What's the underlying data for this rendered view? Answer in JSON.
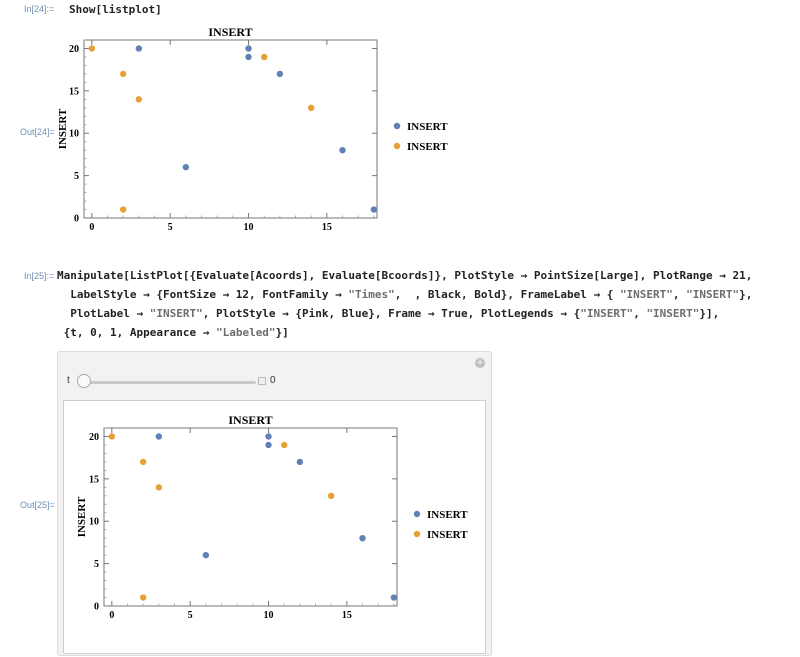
{
  "cells": {
    "in24_label": "In[24]:=",
    "in24_code": "Show[listplot]",
    "out24_label": "Out[24]=",
    "in25_label": "In[25]:=",
    "in25": {
      "l1_a": "Manipulate[ListPlot[{Evaluate[Acoords], Evaluate[Bcoords]}, PlotStyle → PointSize[Large], PlotRange → 21,",
      "l2_a": "  LabelStyle → {FontSize → 12, FontFamily → ",
      "l2_s1": "\"Times\"",
      "l2_b": ",  , Black, Bold}, FrameLabel → { ",
      "l2_s2": "\"INSERT\"",
      "l2_c": ", ",
      "l2_s3": "\"INSERT\"",
      "l2_d": "},",
      "l3_a": "  PlotLabel → ",
      "l3_s1": "\"INSERT\"",
      "l3_b": ", PlotStyle → {Pink, Blue}, Frame → True, PlotLegends → {",
      "l3_s2": "\"INSERT\"",
      "l3_c": ", ",
      "l3_s3": "\"INSERT\"",
      "l3_d": "}],",
      "l4_a": "{t, 0, 1, Appearance → ",
      "l4_s1": "\"Labeled\"",
      "l4_b": "}]"
    },
    "out25_label": "Out[25]="
  },
  "manipulate": {
    "slider_label": "t",
    "slider_value": "0",
    "slider_fraction": 0,
    "plus_glyph": "+"
  },
  "colors": {
    "blue_series": "#5f81b5",
    "orange_series": "#e6a034"
  },
  "chart_data": [
    {
      "type": "scatter",
      "title": "INSERT",
      "xlabel": "",
      "ylabel": "INSERT",
      "xlim": [
        -0.5,
        18.2
      ],
      "ylim": [
        0,
        21
      ],
      "xticks": [
        0,
        5,
        10,
        15
      ],
      "yticks": [
        0,
        5,
        10,
        15,
        20
      ],
      "legend_position": "right",
      "series": [
        {
          "name": "INSERT",
          "color": "#5f81b5",
          "points": [
            [
              3,
              20
            ],
            [
              6,
              6
            ],
            [
              10,
              20
            ],
            [
              10,
              19
            ],
            [
              12,
              17
            ],
            [
              16,
              8
            ],
            [
              18,
              1
            ]
          ]
        },
        {
          "name": "INSERT",
          "color": "#e6a034",
          "points": [
            [
              0,
              20
            ],
            [
              2,
              17
            ],
            [
              2,
              1
            ],
            [
              3,
              14
            ],
            [
              11,
              19
            ],
            [
              14,
              13
            ]
          ]
        }
      ]
    },
    {
      "type": "scatter",
      "title": "INSERT",
      "xlabel": "",
      "ylabel": "INSERT",
      "xlim": [
        -0.5,
        18.2
      ],
      "ylim": [
        0,
        21
      ],
      "xticks": [
        0,
        5,
        10,
        15
      ],
      "yticks": [
        0,
        5,
        10,
        15,
        20
      ],
      "legend_position": "right",
      "series": [
        {
          "name": "INSERT",
          "color": "#5f81b5",
          "points": [
            [
              3,
              20
            ],
            [
              6,
              6
            ],
            [
              10,
              20
            ],
            [
              10,
              19
            ],
            [
              12,
              17
            ],
            [
              16,
              8
            ],
            [
              18,
              1
            ]
          ]
        },
        {
          "name": "INSERT",
          "color": "#e6a034",
          "points": [
            [
              0,
              20
            ],
            [
              2,
              17
            ],
            [
              2,
              1
            ],
            [
              3,
              14
            ],
            [
              11,
              19
            ],
            [
              14,
              13
            ]
          ]
        }
      ]
    }
  ]
}
